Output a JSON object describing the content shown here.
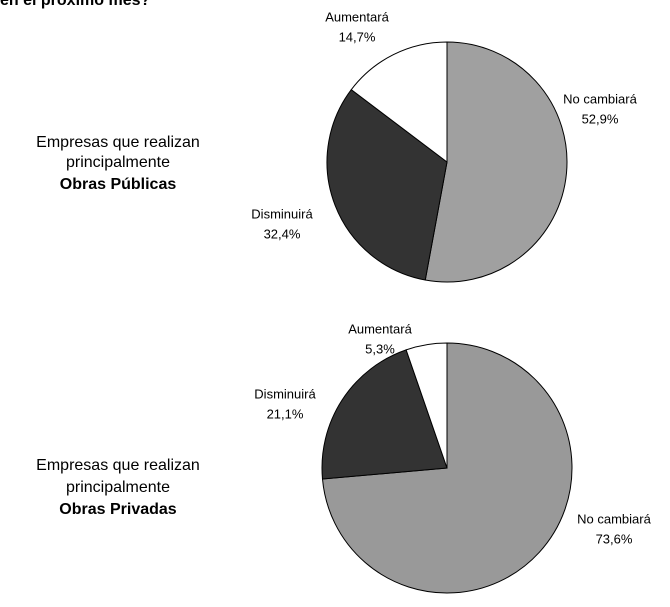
{
  "title": "en el próximo mes?",
  "chart_data": [
    {
      "type": "pie",
      "label_lines": [
        "Empresas que realizan",
        "principalmente",
        "Obras Públicas"
      ],
      "categories": [
        "No cambiará",
        "Disminuirá",
        "Aumentará"
      ],
      "values": [
        52.9,
        32.4,
        14.7
      ],
      "value_labels": [
        "52,9%",
        "32,4%",
        "14,7%"
      ],
      "colors": [
        "#a0a0a0",
        "#333333",
        "#ffffff"
      ]
    },
    {
      "type": "pie",
      "label_lines": [
        "Empresas que realizan",
        "principalmente",
        "Obras Privadas"
      ],
      "categories": [
        "No cambiará",
        "Disminuirá",
        "Aumentará"
      ],
      "values": [
        73.6,
        21.1,
        5.3
      ],
      "value_labels": [
        "73,6%",
        "21,1%",
        "5,3%"
      ],
      "colors": [
        "#999999",
        "#333333",
        "#ffffff"
      ]
    }
  ]
}
